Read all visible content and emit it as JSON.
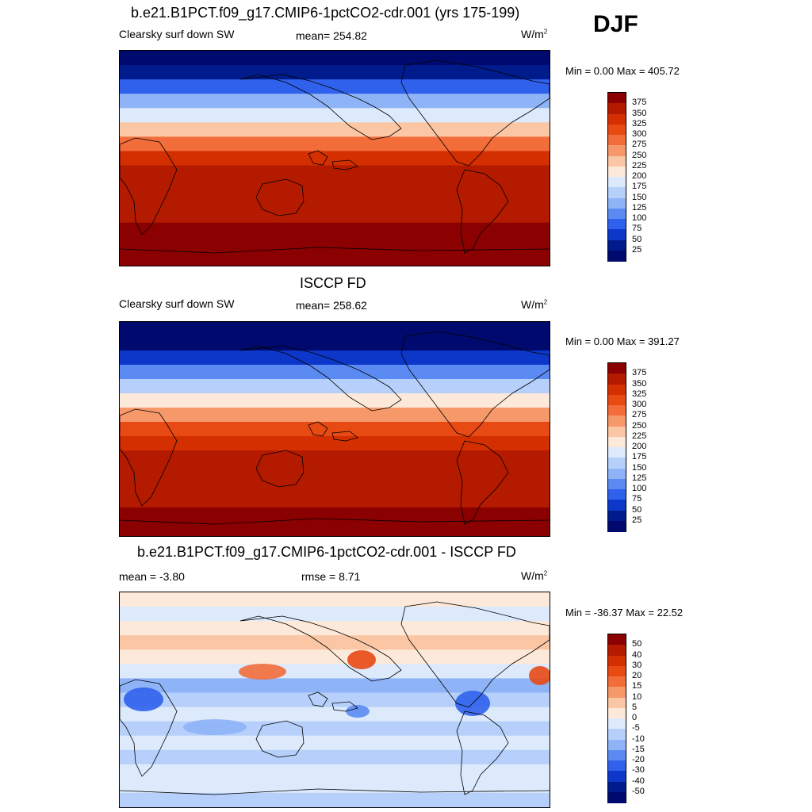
{
  "season": "DJF",
  "panels": [
    {
      "title": "b.e21.B1PCT.f09_g17.CMIP6-1pctCO2-cdr.001 (yrs 175-199)",
      "left_text": "Clearsky surf down SW",
      "center_text": "mean= 254.82",
      "unit_base": "W/m",
      "unit_exp": "2",
      "minmax": "Min =   0.00 Max = 405.72",
      "colorbar": {
        "labels": [
          "375",
          "350",
          "325",
          "300",
          "275",
          "250",
          "225",
          "200",
          "175",
          "150",
          "125",
          "100",
          "75",
          "50",
          "25"
        ],
        "colors": [
          "#8b0000",
          "#b31a00",
          "#d42f00",
          "#e84a14",
          "#f26d3a",
          "#f7986b",
          "#fbc6a4",
          "#fde9d9",
          "#dceafc",
          "#b6d0fb",
          "#8fb3f7",
          "#5b8bf2",
          "#2f61ec",
          "#0d37c9",
          "#001b8c",
          "#000a6e"
        ]
      }
    },
    {
      "title": "ISCCP FD",
      "left_text": "Clearsky surf down SW",
      "center_text": "mean= 258.62",
      "unit_base": "W/m",
      "unit_exp": "2",
      "minmax": "Min =   0.00 Max = 391.27",
      "colorbar": {
        "labels": [
          "375",
          "350",
          "325",
          "300",
          "275",
          "250",
          "225",
          "200",
          "175",
          "150",
          "125",
          "100",
          "75",
          "50",
          "25"
        ],
        "colors": [
          "#8b0000",
          "#b31a00",
          "#d42f00",
          "#e84a14",
          "#f26d3a",
          "#f7986b",
          "#fbc6a4",
          "#fde9d9",
          "#dceafc",
          "#b6d0fb",
          "#8fb3f7",
          "#5b8bf2",
          "#2f61ec",
          "#0d37c9",
          "#001b8c",
          "#000a6e"
        ]
      }
    },
    {
      "title": "b.e21.B1PCT.f09_g17.CMIP6-1pctCO2-cdr.001 - ISCCP FD",
      "left_text": "mean =  -3.80",
      "center_text": "rmse =   8.71",
      "unit_base": "W/m",
      "unit_exp": "2",
      "minmax": "Min = -36.37 Max =  22.52",
      "colorbar": {
        "labels": [
          "50",
          "40",
          "30",
          "20",
          "15",
          "10",
          "5",
          "0",
          "-5",
          "-10",
          "-15",
          "-20",
          "-30",
          "-40",
          "-50"
        ],
        "colors": [
          "#8b0000",
          "#b31a00",
          "#d42f00",
          "#e84a14",
          "#f26d3a",
          "#f7986b",
          "#fbc6a4",
          "#fde9d9",
          "#dceafc",
          "#b6d0fb",
          "#8fb3f7",
          "#5b8bf2",
          "#2f61ec",
          "#0d37c9",
          "#001b8c",
          "#000a6e"
        ]
      }
    }
  ],
  "chart_data": [
    {
      "type": "heatmap",
      "title": "b.e21.B1PCT.f09_g17.CMIP6-1pctCO2-cdr.001 (yrs 175-199)",
      "variable": "Clearsky surf down SW",
      "units": "W/m2",
      "mean": 254.82,
      "min": 0.0,
      "max": 405.72,
      "latitude_bands_top_to_bottom": [
        0,
        25,
        75,
        125,
        175,
        225,
        275,
        325,
        350,
        360,
        365,
        370,
        375,
        385,
        395
      ],
      "levels": [
        25,
        50,
        75,
        100,
        125,
        150,
        175,
        200,
        225,
        250,
        275,
        300,
        325,
        350,
        375
      ]
    },
    {
      "type": "heatmap",
      "title": "ISCCP FD",
      "variable": "Clearsky surf down SW",
      "units": "W/m2",
      "mean": 258.62,
      "min": 0.0,
      "max": 391.27,
      "latitude_bands_top_to_bottom": [
        0,
        20,
        70,
        120,
        170,
        220,
        270,
        320,
        345,
        355,
        360,
        365,
        370,
        380,
        390
      ],
      "levels": [
        25,
        50,
        75,
        100,
        125,
        150,
        175,
        200,
        225,
        250,
        275,
        300,
        325,
        350,
        375
      ]
    },
    {
      "type": "heatmap",
      "title": "b.e21.B1PCT.f09_g17.CMIP6-1pctCO2-cdr.001 - ISCCP FD",
      "units": "W/m2",
      "mean": -3.8,
      "rmse": 8.71,
      "min": -36.37,
      "max": 22.52,
      "latitude_bands_top_to_bottom": [
        0,
        -5,
        3,
        8,
        2,
        -3,
        -12,
        -8,
        -5,
        -10,
        -3,
        -6,
        -2,
        -5,
        -8
      ],
      "levels": [
        -50,
        -40,
        -30,
        -20,
        -15,
        -10,
        -5,
        0,
        5,
        10,
        15,
        20,
        30,
        40,
        50
      ]
    }
  ]
}
